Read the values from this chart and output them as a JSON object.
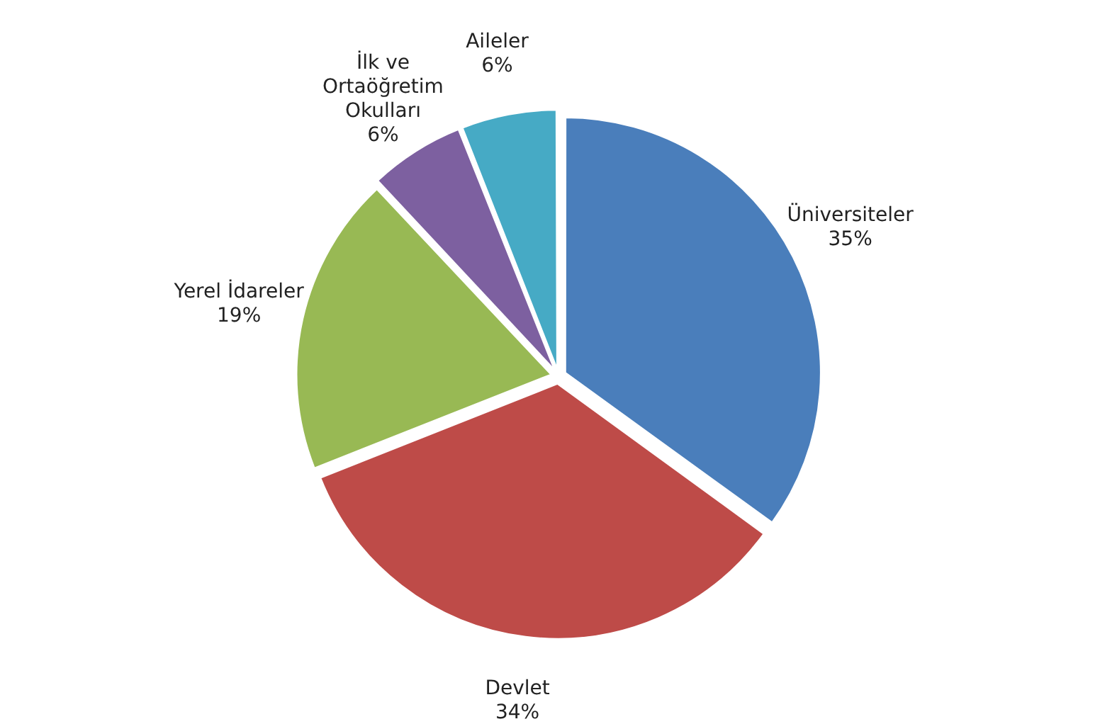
{
  "chart_data": {
    "type": "pie",
    "categories": [
      "Üniversiteler",
      "Devlet",
      "Yerel İdareler",
      "İlk ve Ortaöğretim Okulları",
      "Aileler"
    ],
    "values": [
      35,
      34,
      19,
      6,
      6
    ],
    "colors": [
      "#4a7ebb",
      "#be4b48",
      "#98b954",
      "#7d60a0",
      "#46aac5"
    ],
    "value_labels": [
      "35%",
      "34%",
      "19%",
      "6%",
      "6%"
    ],
    "legend": false
  }
}
